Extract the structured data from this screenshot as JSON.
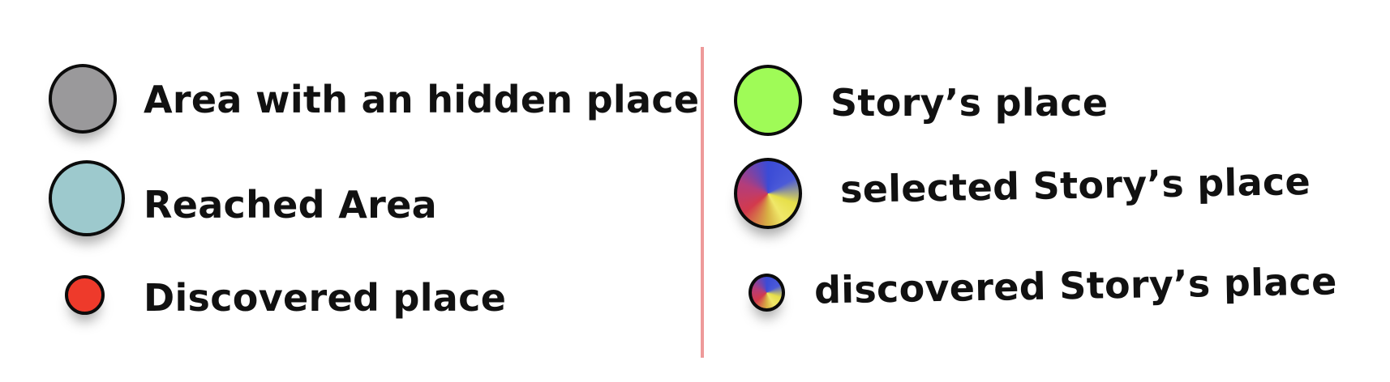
{
  "legend": {
    "left": [
      {
        "label": "Area with an hidden place",
        "color": "#9a999b",
        "icon": "gray-circle-icon"
      },
      {
        "label": "Reached Area",
        "color": "#9dc9cd",
        "icon": "light-blue-circle-icon"
      },
      {
        "label": "Discovered place",
        "color": "#ee3a2b",
        "icon": "red-dot-icon"
      }
    ],
    "right": [
      {
        "label": "Story’s place",
        "color": "#9ffb57",
        "icon": "green-circle-icon"
      },
      {
        "label": "selected Story’s place",
        "colors": [
          "#3b4bd6",
          "#d33a4c",
          "#e6df4a"
        ],
        "icon": "multicolor-circle-icon"
      },
      {
        "label": "discovered Story’s place",
        "colors": [
          "#3b4bd6",
          "#d33a4c",
          "#e6df4a"
        ],
        "icon": "small-multicolor-dot-icon"
      }
    ],
    "divider_color": "#ee9a9a"
  }
}
